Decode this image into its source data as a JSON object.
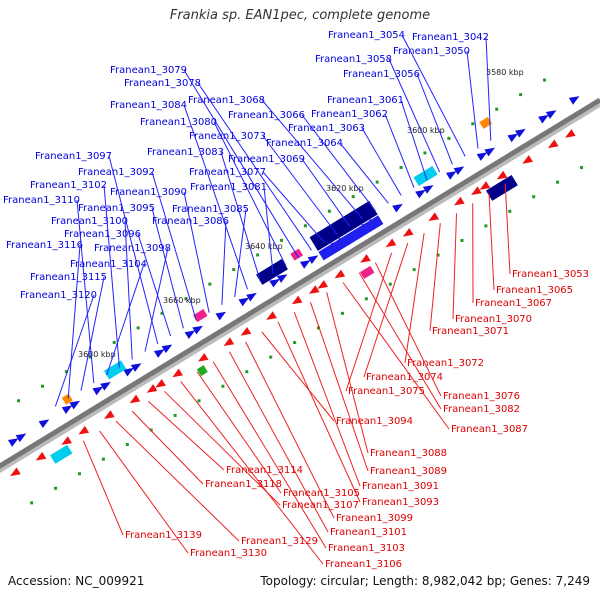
{
  "title": "Frankia sp. EAN1pec, complete genome",
  "footer": {
    "accession": "Accession: NC_009921",
    "summary": "Topology: circular; Length: 8,982,042 bp; Genes: 7,249"
  },
  "colors": {
    "forward_label": "#0000dd",
    "reverse_label": "#dd0000",
    "backbone": "#777777"
  },
  "ticks": [
    "3580 kbp",
    "3600 kbp",
    "3620 kbp",
    "3640 kbp",
    "3660 kbp",
    "3680 kbp"
  ],
  "forward_labels": [
    "Franean1_3042",
    "Franean1_3050",
    "Franean1_3054",
    "Franean1_3056",
    "Franean1_3058",
    "Franean1_3061",
    "Franean1_3062",
    "Franean1_3063",
    "Franean1_3064",
    "Franean1_3066",
    "Franean1_3068",
    "Franean1_3069",
    "Franean1_3073",
    "Franean1_3077",
    "Franean1_3078",
    "Franean1_3079",
    "Franean1_3080",
    "Franean1_3081",
    "Franean1_3083",
    "Franean1_3084",
    "Franean1_3085",
    "Franean1_3086",
    "Franean1_3090",
    "Franean1_3092",
    "Franean1_3095",
    "Franean1_3096",
    "Franean1_3097",
    "Franean1_3098",
    "Franean1_3100",
    "Franean1_3102",
    "Franean1_3104",
    "Franean1_3110",
    "Franean1_3115",
    "Franean1_3116",
    "Franean1_3120"
  ],
  "reverse_labels": [
    "Franean1_3053",
    "Franean1_3065",
    "Franean1_3067",
    "Franean1_3070",
    "Franean1_3071",
    "Franean1_3072",
    "Franean1_3074",
    "Franean1_3075",
    "Franean1_3076",
    "Franean1_3082",
    "Franean1_3087",
    "Franean1_3088",
    "Franean1_3089",
    "Franean1_3091",
    "Franean1_3093",
    "Franean1_3094",
    "Franean1_3099",
    "Franean1_3101",
    "Franean1_3103",
    "Franean1_3105",
    "Franean1_3106",
    "Franean1_3107",
    "Franean1_3114",
    "Franean1_3118",
    "Franean1_3129",
    "Franean1_3130",
    "Franean1_3139"
  ]
}
